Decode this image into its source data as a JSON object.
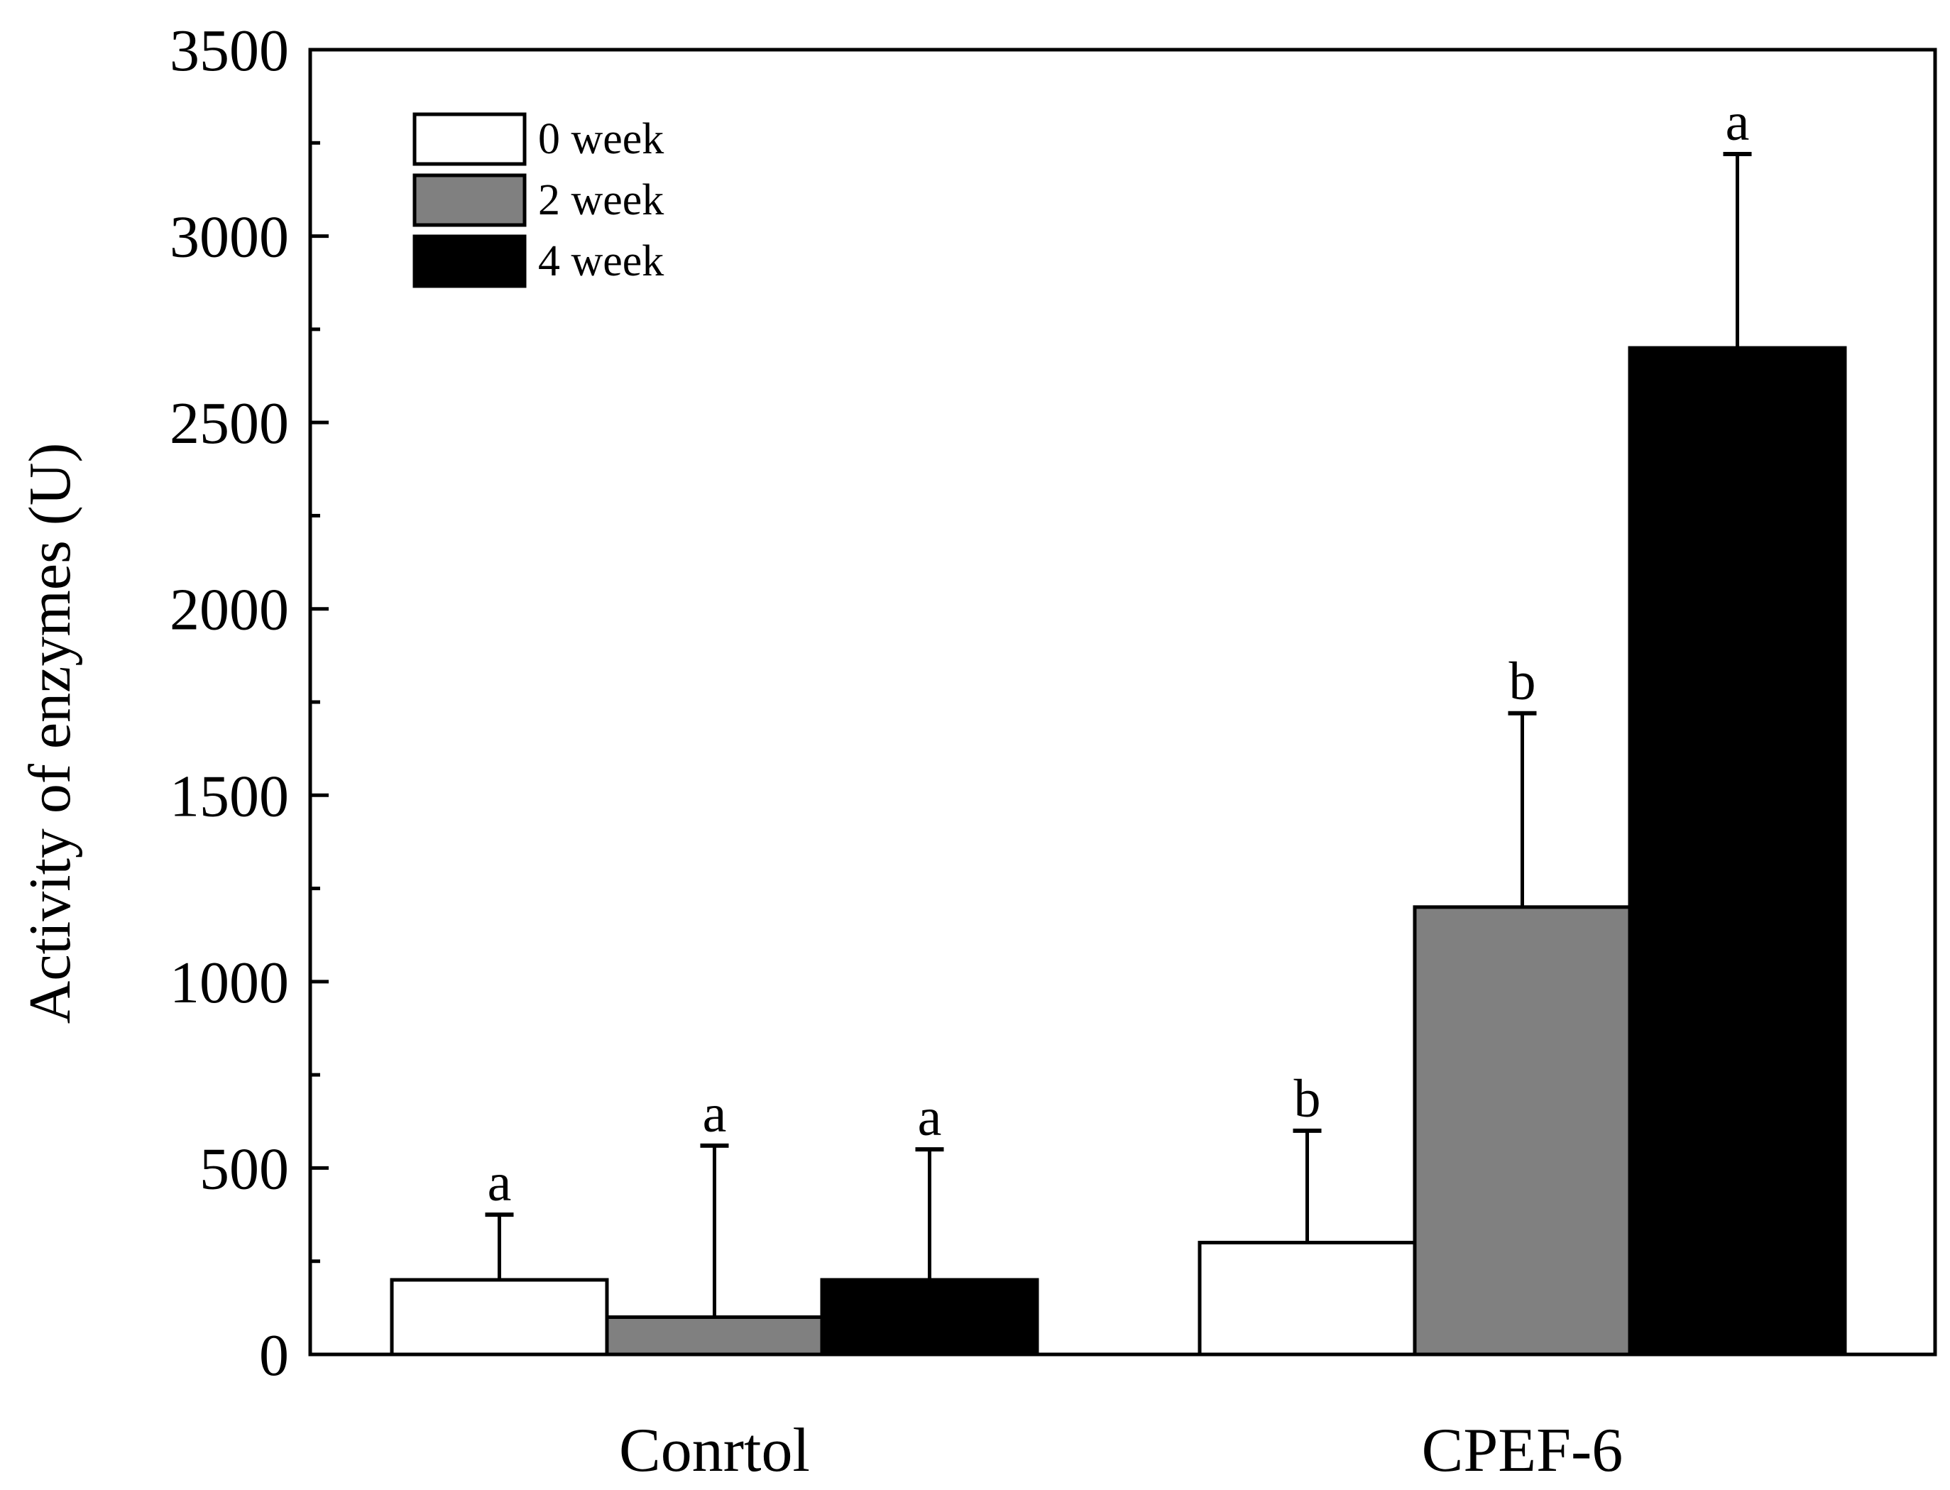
{
  "chart_data": {
    "type": "bar",
    "title": "",
    "xlabel": "",
    "ylabel": "Activity of  enzymes (U)",
    "ylim": [
      0,
      3500
    ],
    "yticks": [
      0,
      500,
      1000,
      1500,
      2000,
      2500,
      3000,
      3500
    ],
    "ytick_labels": [
      "0",
      "500",
      "1000",
      "1500",
      "2000",
      "2500",
      "3000",
      "3500"
    ],
    "categories": [
      "Conrtol",
      "CPEF-6"
    ],
    "legend_position": "top-left",
    "series": [
      {
        "name": "0 week",
        "color": "#ffffff",
        "values": [
          200,
          300
        ],
        "errors": [
          175,
          300
        ],
        "sig": [
          "a",
          "b"
        ]
      },
      {
        "name": "2 week",
        "color": "#808080",
        "values": [
          100,
          1200
        ],
        "errors": [
          460,
          520
        ],
        "sig": [
          "a",
          "b"
        ]
      },
      {
        "name": "4 week",
        "color": "#000000",
        "values": [
          200,
          2700
        ],
        "errors": [
          350,
          520
        ],
        "sig": [
          "a",
          "a"
        ]
      }
    ]
  }
}
